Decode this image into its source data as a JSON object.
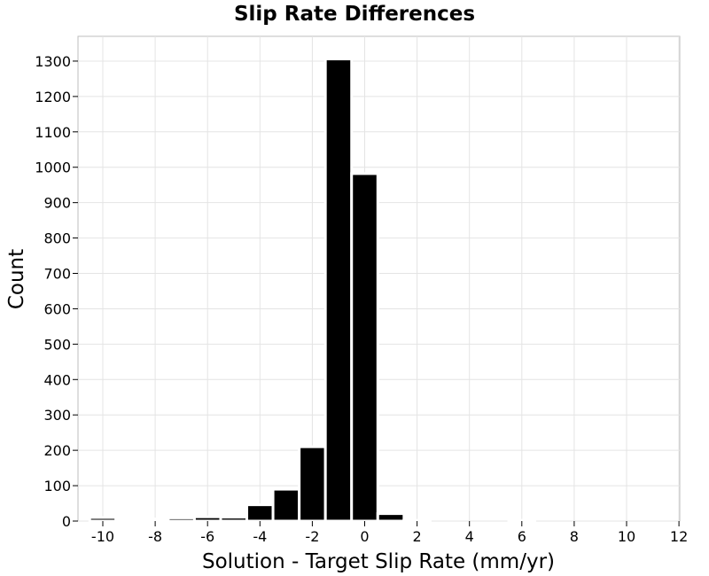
{
  "chart_data": {
    "type": "bar",
    "title": "Slip Rate Differences",
    "xlabel": "Solution - Target Slip Rate (mm/yr)",
    "ylabel": "Count",
    "xlim": [
      -11,
      12
    ],
    "ylim": [
      0,
      1370
    ],
    "xticks": [
      -10,
      -8,
      -6,
      -4,
      -2,
      0,
      2,
      4,
      6,
      8,
      10,
      12
    ],
    "yticks": [
      0,
      100,
      200,
      300,
      400,
      500,
      600,
      700,
      800,
      900,
      1000,
      1100,
      1200,
      1300
    ],
    "bin_width": 1,
    "bar_color": "#000000",
    "bar_edge_color": "#ffffff",
    "grid": true,
    "bins": [
      {
        "x": -10,
        "count": 10
      },
      {
        "x": -9,
        "count": 5
      },
      {
        "x": -8,
        "count": 6
      },
      {
        "x": -7,
        "count": 9
      },
      {
        "x": -6,
        "count": 12
      },
      {
        "x": -5,
        "count": 11
      },
      {
        "x": -4,
        "count": 46
      },
      {
        "x": -3,
        "count": 90
      },
      {
        "x": -2,
        "count": 210
      },
      {
        "x": -1,
        "count": 1306
      },
      {
        "x": 0,
        "count": 982
      },
      {
        "x": 1,
        "count": 21
      },
      {
        "x": 2,
        "count": 2
      },
      {
        "x": 3,
        "count": 0
      },
      {
        "x": 4,
        "count": 0
      },
      {
        "x": 5,
        "count": 0
      },
      {
        "x": 6,
        "count": 2
      },
      {
        "x": 7,
        "count": 0
      },
      {
        "x": 8,
        "count": 0
      },
      {
        "x": 9,
        "count": 0
      },
      {
        "x": 10,
        "count": 0
      }
    ]
  }
}
